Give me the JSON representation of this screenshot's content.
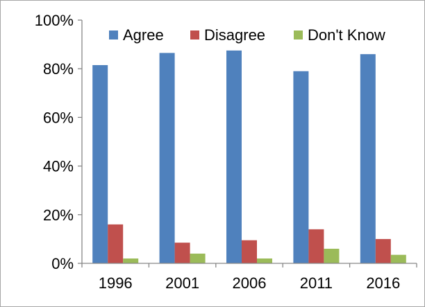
{
  "chart_data": {
    "type": "bar",
    "title": "",
    "xlabel": "",
    "ylabel": "",
    "categories": [
      "1996",
      "2001",
      "2006",
      "2011",
      "2016"
    ],
    "series": [
      {
        "name": "Agree",
        "color": "#4f81bd",
        "values": [
          81.5,
          86.5,
          87.5,
          79,
          86
        ]
      },
      {
        "name": "Disagree",
        "color": "#c0504d",
        "values": [
          16,
          8.5,
          9.5,
          14,
          10
        ]
      },
      {
        "name": "Don't Know",
        "color": "#9bbb59",
        "values": [
          2,
          4,
          2,
          6,
          3.5
        ]
      }
    ],
    "ylim": [
      0,
      100
    ],
    "yticks": [
      {
        "value": 0,
        "label": "0%"
      },
      {
        "value": 20,
        "label": "20%"
      },
      {
        "value": 40,
        "label": "40%"
      },
      {
        "value": 60,
        "label": "60%"
      },
      {
        "value": 80,
        "label": "80%"
      },
      {
        "value": 100,
        "label": "100%"
      }
    ],
    "grid": false,
    "legend_position": "top-right",
    "axis_color": "#868686"
  }
}
